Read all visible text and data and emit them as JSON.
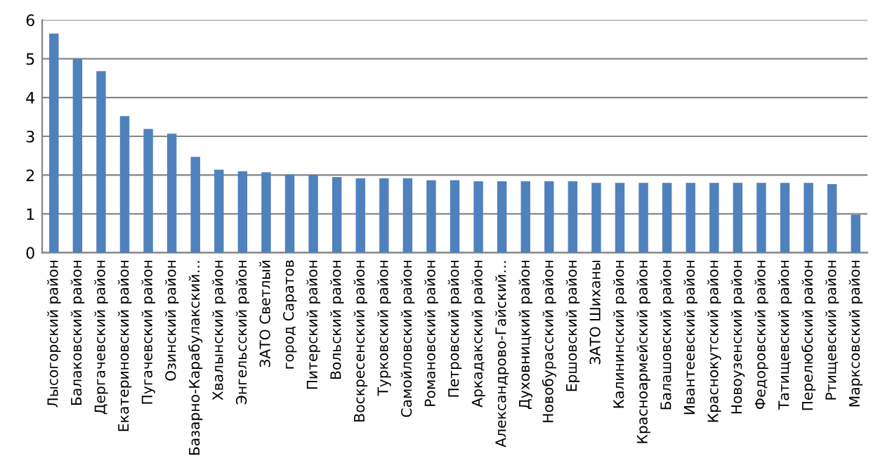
{
  "chart_data": {
    "type": "bar",
    "categories": [
      "Лысогорский район",
      "Балаковский район",
      "Дергачевский район",
      "Екатериновский район",
      "Пугачевский район",
      "Озинский район",
      "Базарно-Карабулакский…",
      "Хвалынский район",
      "Энгельсский район",
      "ЗАТО Светлый",
      "город Саратов",
      "Питерский район",
      "Вольский район",
      "Воскресенский район",
      "Турковский район",
      "Самойловский район",
      "Романовский район",
      "Петровский район",
      "Аркадакский район",
      "Александрово-Гайский…",
      "Духовницкий район",
      "Новобурасский район",
      "Ершовский район",
      "ЗАТО Шиханы",
      "Калининский район",
      "Красноармейский район",
      "Балашовский район",
      "Ивантеевский район",
      "Краснокутский район",
      "Новоузенский район",
      "Федоровский район",
      "Татищевский район",
      "Перелюбский район",
      "Ртищевский район",
      "Марксовский район"
    ],
    "values": [
      5.65,
      5.0,
      4.68,
      3.52,
      3.19,
      3.07,
      2.47,
      2.14,
      2.1,
      2.07,
      2.02,
      2.01,
      1.95,
      1.92,
      1.92,
      1.92,
      1.87,
      1.87,
      1.84,
      1.84,
      1.84,
      1.84,
      1.84,
      1.8,
      1.8,
      1.8,
      1.8,
      1.8,
      1.8,
      1.8,
      1.8,
      1.8,
      1.8,
      1.77,
      0.98
    ],
    "color": "#4f81bd",
    "ylim": [
      0,
      6
    ],
    "yticks": [
      0,
      1,
      2,
      3,
      4,
      5,
      6
    ],
    "grid": "y",
    "legend": false
  }
}
